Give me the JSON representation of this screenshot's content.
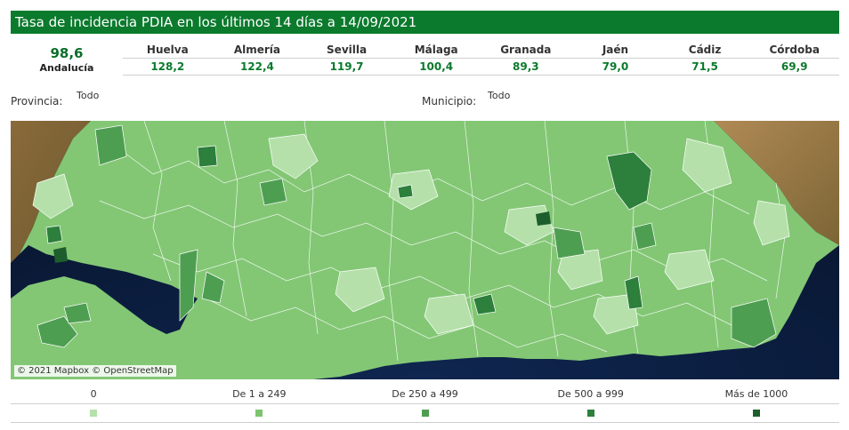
{
  "header": {
    "title": "Tasa de incidencia PDIA en los últimos 14 días a 14/09/2021"
  },
  "summary": {
    "value": "98,6",
    "label": "Andalucía"
  },
  "provinces": [
    {
      "name": "Huelva",
      "value": "128,2"
    },
    {
      "name": "Almería",
      "value": "122,4"
    },
    {
      "name": "Sevilla",
      "value": "119,7"
    },
    {
      "name": "Málaga",
      "value": "100,4"
    },
    {
      "name": "Granada",
      "value": "89,3"
    },
    {
      "name": "Jaén",
      "value": "79,0"
    },
    {
      "name": "Cádiz",
      "value": "71,5"
    },
    {
      "name": "Córdoba",
      "value": "69,9"
    }
  ],
  "filters": {
    "provincia": {
      "label": "Provincia:",
      "value": "Todo"
    },
    "municipio": {
      "label": "Municipio:",
      "value": "Todo"
    }
  },
  "map": {
    "attribution": "© 2021 Mapbox © OpenStreetMap"
  },
  "legend": [
    {
      "label": "0",
      "color": "#b5e0aa"
    },
    {
      "label": "De 1 a 249",
      "color": "#7dc46f"
    },
    {
      "label": "De 250 a 499",
      "color": "#4e9e52"
    },
    {
      "label": "De 500 a 999",
      "color": "#2d7f3c"
    },
    {
      "label": "Más de 1000",
      "color": "#1d5e2c"
    }
  ]
}
